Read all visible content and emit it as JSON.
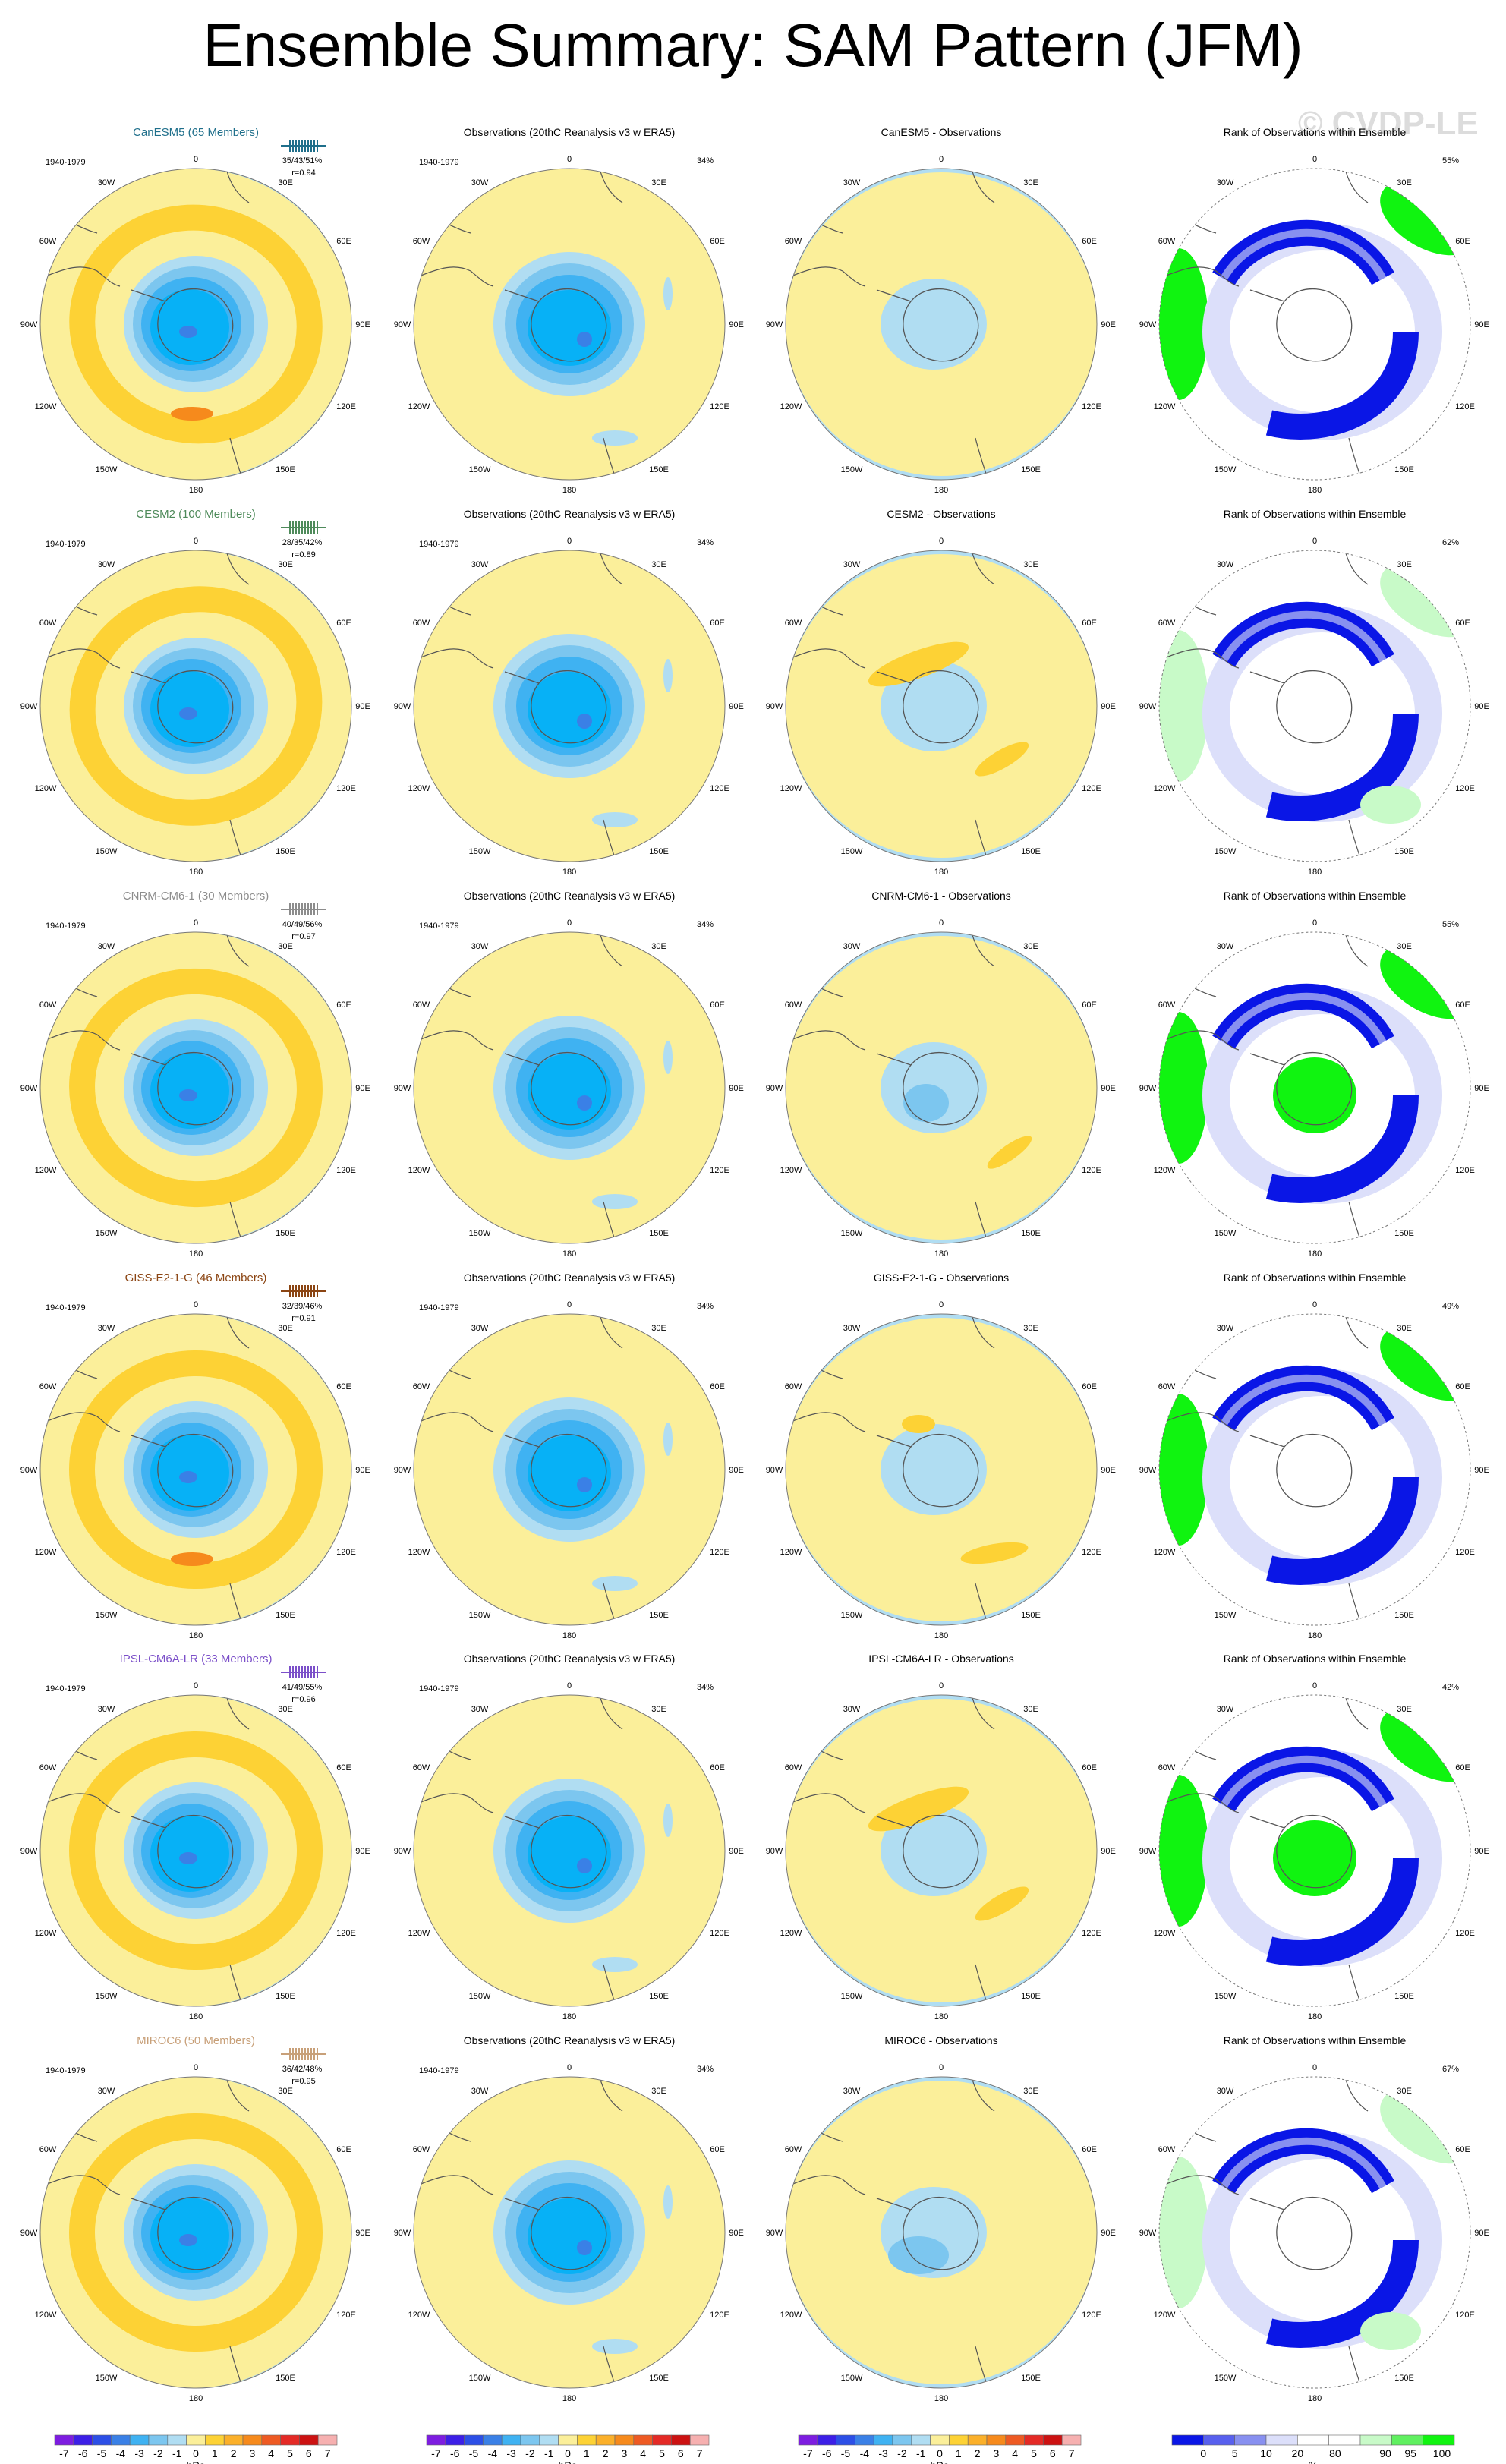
{
  "page": {
    "title": "Ensemble Summary: SAM Pattern (JFM)",
    "watermark": "© CVDP-LE"
  },
  "colors": {
    "ocean_pos": "#fbef9a",
    "pos2": "#fdd235",
    "pos3": "#fbb02a",
    "neg1": "#b0ddf2",
    "neg2": "#7cc6ef",
    "neg3": "#3fb2f2",
    "neg4": "#07b1f6",
    "neg5": "#3a80e6",
    "rank_low": "#0a16e6",
    "rank_mid": "#8890f0",
    "rank_light": "#dcdffa",
    "rank_high": "#10f410",
    "rank_hlight": "#c8fac8",
    "coast": "#555555"
  },
  "map_labels": {
    "lon_top": "0",
    "lon_30w": "30W",
    "lon_30e": "30E",
    "lon_60w": "60W",
    "lon_60e": "60E",
    "lon_90w": "90W",
    "lon_90e": "90E",
    "lon_120w": "120W",
    "lon_120e": "120E",
    "lon_150w": "150W",
    "lon_150e": "150E",
    "lon_bottom": "180"
  },
  "rows": [
    {
      "model": "CanESM5 (65 Members)",
      "model_color": "#1f6f8b",
      "period": "1940-1979",
      "stats": "35/43/51%",
      "corr": "r=0.94",
      "obs_title": "Observations (20thC Reanalysis v3 w ERA5)",
      "obs_period": "1940-1979",
      "obs_pct": "34%",
      "diff_title": "CanESM5 - Observations",
      "rank_title": "Rank of Observations within Ensemble",
      "rank_pct": "55%"
    },
    {
      "model": "CESM2 (100 Members)",
      "model_color": "#4e8a5a",
      "period": "1940-1979",
      "stats": "28/35/42%",
      "corr": "r=0.89",
      "obs_title": "Observations (20thC Reanalysis v3 w ERA5)",
      "obs_period": "1940-1979",
      "obs_pct": "34%",
      "diff_title": "CESM2 - Observations",
      "rank_title": "Rank of Observations within Ensemble",
      "rank_pct": "62%"
    },
    {
      "model": "CNRM-CM6-1 (30 Members)",
      "model_color": "#8c8c8c",
      "period": "1940-1979",
      "stats": "40/49/56%",
      "corr": "r=0.97",
      "obs_title": "Observations (20thC Reanalysis v3 w ERA5)",
      "obs_period": "1940-1979",
      "obs_pct": "34%",
      "diff_title": "CNRM-CM6-1 - Observations",
      "rank_title": "Rank of Observations within Ensemble",
      "rank_pct": "55%"
    },
    {
      "model": "GISS-E2-1-G (46 Members)",
      "model_color": "#8b4513",
      "period": "1940-1979",
      "stats": "32/39/46%",
      "corr": "r=0.91",
      "obs_title": "Observations (20thC Reanalysis v3 w ERA5)",
      "obs_period": "1940-1979",
      "obs_pct": "34%",
      "diff_title": "GISS-E2-1-G - Observations",
      "rank_title": "Rank of Observations within Ensemble",
      "rank_pct": "49%"
    },
    {
      "model": "IPSL-CM6A-LR (33 Members)",
      "model_color": "#7b4fc9",
      "period": "1940-1979",
      "stats": "41/49/55%",
      "corr": "r=0.96",
      "obs_title": "Observations (20thC Reanalysis v3 w ERA5)",
      "obs_period": "1940-1979",
      "obs_pct": "34%",
      "diff_title": "IPSL-CM6A-LR - Observations",
      "rank_title": "Rank of Observations within Ensemble",
      "rank_pct": "42%"
    },
    {
      "model": "MIROC6 (50 Members)",
      "model_color": "#c8a079",
      "period": "1940-1979",
      "stats": "36/42/48%",
      "corr": "r=0.95",
      "obs_title": "Observations (20thC Reanalysis v3 w ERA5)",
      "obs_period": "1940-1979",
      "obs_pct": "34%",
      "diff_title": "MIROC6 - Observations",
      "rank_title": "Rank of Observations within Ensemble",
      "rank_pct": "67%"
    }
  ],
  "colorbars": {
    "hpa_colors": [
      "#7d1de0",
      "#3c1fe6",
      "#2c4fe6",
      "#3a80e6",
      "#3fb2f2",
      "#7cc6ef",
      "#b0ddf2",
      "#fbef9a",
      "#fdd235",
      "#fbb02a",
      "#f68a1c",
      "#ee5a23",
      "#e42a26",
      "#cc1212",
      "#f6b0b0"
    ],
    "hpa_ticks": [
      "-7",
      "-6",
      "-5",
      "-4",
      "-3",
      "-2",
      "-1",
      "0",
      "1",
      "2",
      "3",
      "4",
      "5",
      "6",
      "7"
    ],
    "hpa_unit": "hPa",
    "rank_colors": [
      "#0a16e6",
      "#5860ee",
      "#8890f0",
      "#dcdffa",
      "#ffffff",
      "#ffffff",
      "#c8fac8",
      "#60f060",
      "#10f410"
    ],
    "rank_ticks": [
      "0",
      "5",
      "10",
      "20",
      "80",
      "90",
      "95",
      "100"
    ],
    "rank_unit": "%"
  }
}
